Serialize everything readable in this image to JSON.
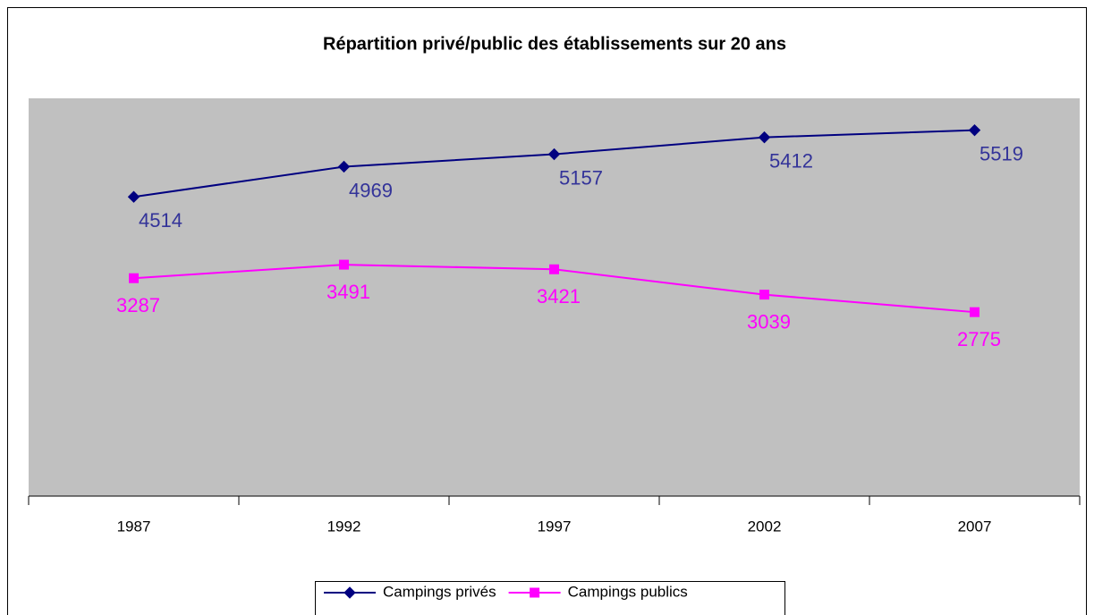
{
  "chart_data": {
    "type": "line",
    "title": "Répartition privé/public des établissements sur 20 ans",
    "categories": [
      "1987",
      "1992",
      "1997",
      "2002",
      "2007"
    ],
    "series": [
      {
        "name": "Campings privés",
        "color": "#000080",
        "marker": "diamond",
        "values": [
          4514,
          4969,
          5157,
          5412,
          5519
        ]
      },
      {
        "name": "Campings publics",
        "color": "#ff00ff",
        "marker": "square",
        "values": [
          3287,
          3491,
          3421,
          3039,
          2775
        ]
      }
    ],
    "ylim": [
      0,
      6000
    ],
    "plot_background": "#c0c0c0",
    "legend": "bottom"
  }
}
